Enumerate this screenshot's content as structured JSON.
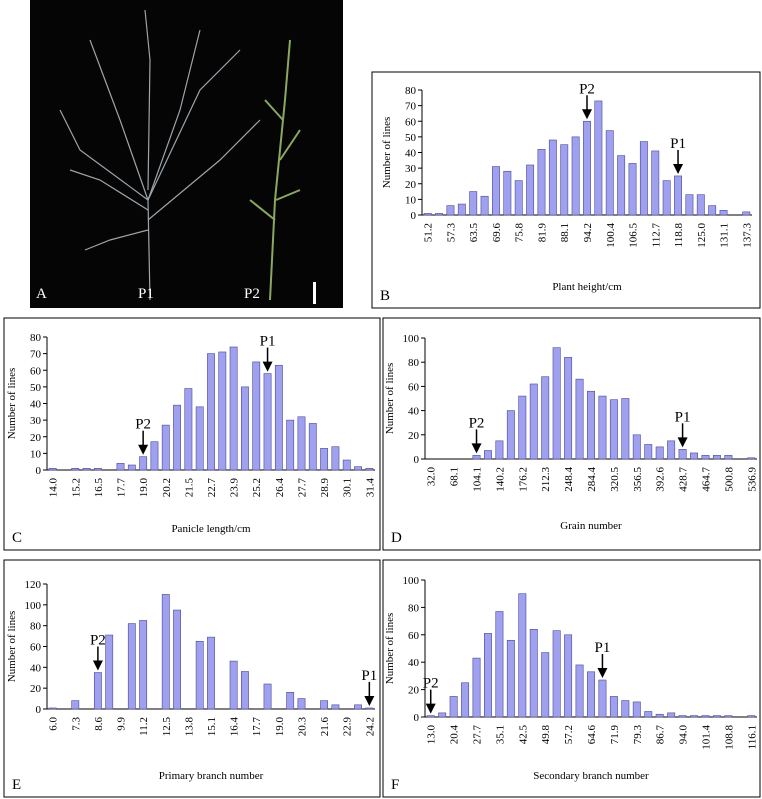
{
  "photo": {
    "label": "A",
    "left_plant": "P1",
    "right_plant": "P2"
  },
  "chart_data": [
    {
      "type": "bar",
      "panel": "B",
      "xlabel": "Plant height/cm",
      "ylabel": "Number of lines",
      "categories": [
        "51.2",
        null,
        "57.3",
        null,
        "63.5",
        null,
        "69.6",
        null,
        "75.8",
        null,
        "81.9",
        null,
        "88.1",
        null,
        "94.2",
        null,
        "100.4",
        null,
        "106.5",
        null,
        "112.7",
        null,
        "118.8",
        null,
        "125.0",
        null,
        "131.1",
        null,
        "137.3"
      ],
      "values": [
        1,
        1,
        6,
        7,
        15,
        12,
        31,
        28,
        22,
        32,
        42,
        48,
        45,
        50,
        60,
        73,
        54,
        38,
        33,
        47,
        41,
        22,
        25,
        13,
        13,
        6,
        3,
        0,
        2
      ],
      "color": "#a0a0f0",
      "ylim": [
        0,
        80
      ],
      "yticks": [
        0,
        10,
        20,
        30,
        40,
        50,
        60,
        70,
        80
      ],
      "annotations": [
        "P2",
        "P1"
      ]
    },
    {
      "type": "bar",
      "panel": "C",
      "xlabel": "Panicle length/cm",
      "ylabel": "Number of lines",
      "categories": [
        "14.0",
        null,
        "15.2",
        null,
        "16.5",
        null,
        "17.7",
        null,
        "19.0",
        null,
        "20.2",
        null,
        "21.5",
        null,
        "22.7",
        null,
        "23.9",
        null,
        "25.2",
        null,
        "26.4",
        null,
        "27.7",
        null,
        "28.9",
        null,
        "30.1",
        null,
        "31.4"
      ],
      "values": [
        1,
        0,
        1,
        1,
        1,
        0,
        4,
        3,
        8,
        17,
        27,
        39,
        49,
        38,
        70,
        71,
        74,
        50,
        65,
        58,
        63,
        30,
        32,
        28,
        13,
        14,
        6,
        2,
        1
      ],
      "color": "#a0a0f0",
      "ylim": [
        0,
        80
      ],
      "yticks": [
        0,
        10,
        20,
        30,
        40,
        50,
        60,
        70,
        80
      ],
      "annotations": [
        "P2",
        "P1"
      ]
    },
    {
      "type": "bar",
      "panel": "D",
      "xlabel": "Grain number",
      "ylabel": "Number of lines",
      "categories": [
        "32.0",
        null,
        "68.1",
        null,
        "104.1",
        null,
        "140.2",
        null,
        "176.2",
        null,
        "212.3",
        null,
        "248.4",
        null,
        "284.4",
        null,
        "320.5",
        null,
        "356.5",
        null,
        "392.6",
        null,
        "428.7",
        null,
        "464.7",
        null,
        "500.8",
        null,
        "536.9"
      ],
      "values": [
        0,
        0,
        0,
        0,
        3,
        7,
        15,
        40,
        52,
        62,
        68,
        92,
        84,
        66,
        56,
        52,
        49,
        50,
        20,
        12,
        10,
        15,
        8,
        5,
        3,
        3,
        3,
        0,
        1
      ],
      "color": "#a0a0f0",
      "ylim": [
        0,
        100
      ],
      "yticks": [
        0,
        20,
        40,
        60,
        80,
        100
      ],
      "annotations": [
        "P2",
        "P1"
      ]
    },
    {
      "type": "bar",
      "panel": "E",
      "xlabel": "Primary branch number",
      "ylabel": "Number of lines",
      "categories": [
        "6.0",
        null,
        "7.3",
        null,
        "8.6",
        null,
        "9.9",
        null,
        "11.2",
        null,
        "12.5",
        null,
        "13.8",
        null,
        "15.1",
        null,
        "16.4",
        null,
        "17.7",
        null,
        "19.0",
        null,
        "20.3",
        null,
        "21.6",
        null,
        "22.9",
        null,
        "24.2"
      ],
      "values": [
        1,
        0,
        8,
        0,
        35,
        71,
        0,
        82,
        85,
        0,
        110,
        95,
        0,
        65,
        69,
        0,
        46,
        36,
        0,
        24,
        0,
        16,
        10,
        0,
        8,
        4,
        0,
        4,
        1
      ],
      "color": "#a0a0f0",
      "ylim": [
        0,
        120
      ],
      "yticks": [
        0,
        20,
        40,
        60,
        80,
        100,
        120
      ],
      "annotations": [
        "P2",
        "P1"
      ]
    },
    {
      "type": "bar",
      "panel": "F",
      "xlabel": "Secondary branch number",
      "ylabel": "Number of lines",
      "categories": [
        "13.0",
        null,
        "20.4",
        null,
        "27.7",
        null,
        "35.1",
        null,
        "42.5",
        null,
        "49.8",
        null,
        "57.2",
        null,
        "64.6",
        null,
        "71.9",
        null,
        "79.3",
        null,
        "86.7",
        null,
        "94.0",
        null,
        "101.4",
        null,
        "108.8",
        null,
        "116.1"
      ],
      "values": [
        1,
        3,
        15,
        25,
        43,
        61,
        77,
        56,
        90,
        64,
        47,
        63,
        60,
        38,
        33,
        27,
        15,
        12,
        11,
        4,
        2,
        3,
        1,
        1,
        1,
        1,
        1,
        0,
        1
      ],
      "color": "#a0a0f0",
      "ylim": [
        0,
        100
      ],
      "yticks": [
        0,
        20,
        40,
        60,
        80,
        100
      ],
      "annotations": [
        "P2",
        "P1"
      ]
    }
  ]
}
